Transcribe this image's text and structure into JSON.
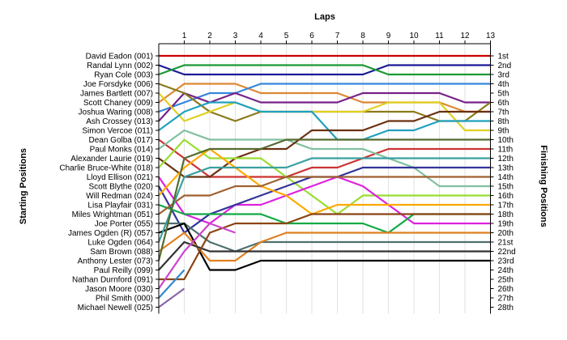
{
  "chart_data": {
    "type": "line",
    "title": "",
    "xlabel": "Laps",
    "ylabel_left": "Starting Positions",
    "ylabel_right": "Finishing Positions",
    "x_ticks": [
      "1",
      "2",
      "3",
      "4",
      "5",
      "6",
      "7",
      "8",
      "9",
      "10",
      "11",
      "12",
      "13"
    ],
    "xlim": [
      0,
      13
    ],
    "ylim": [
      1,
      28
    ],
    "grid": "vertical",
    "position_labels": [
      "1st",
      "2nd",
      "3rd",
      "4th",
      "5th",
      "6th",
      "7th",
      "8th",
      "9th",
      "10th",
      "11th",
      "12th",
      "13th",
      "14th",
      "15th",
      "16th",
      "17th",
      "18th",
      "19th",
      "20th",
      "21st",
      "22nd",
      "23rd",
      "24th",
      "25th",
      "26th",
      "27th",
      "28th"
    ],
    "series": [
      {
        "name": "David Eadon (001)",
        "color": "#cc0000",
        "values": [
          1,
          1,
          1,
          1,
          1,
          1,
          1,
          1,
          1,
          1,
          1,
          1,
          1,
          1
        ]
      },
      {
        "name": "Randal Lynn (002)",
        "color": "#1a1a99",
        "values": [
          2,
          3,
          3,
          3,
          3,
          3,
          3,
          3,
          3,
          2,
          2,
          2,
          2,
          2
        ]
      },
      {
        "name": "Ryan Cole (003)",
        "color": "#1a9933",
        "values": [
          3,
          2,
          2,
          2,
          2,
          2,
          2,
          2,
          2,
          3,
          3,
          3,
          3,
          3
        ]
      },
      {
        "name": "Joe Forsdyke (006)",
        "color": "#dd8833",
        "values": [
          6,
          4,
          4,
          4,
          5,
          5,
          5,
          5,
          6,
          6,
          6,
          6,
          7,
          7
        ]
      },
      {
        "name": "James Bartlett (007)",
        "color": "#3388dd",
        "values": [
          7,
          6,
          5,
          5,
          4,
          4,
          4,
          4,
          4,
          4,
          4,
          4,
          4,
          4
        ]
      },
      {
        "name": "Scott Chaney (009)",
        "color": "#772288",
        "values": [
          8,
          5,
          6,
          5,
          6,
          6,
          6,
          6,
          5,
          5,
          5,
          5,
          6,
          6
        ]
      },
      {
        "name": "Joshua Waring (008)",
        "color": "#8b7a1a",
        "values": [
          4,
          5,
          7,
          8,
          7,
          7,
          7,
          7,
          7,
          7,
          7,
          8,
          8,
          6
        ]
      },
      {
        "name": "Ash Crossey (013)",
        "color": "#e0d020",
        "values": [
          5,
          8,
          7,
          6,
          7,
          7,
          7,
          7,
          7,
          6,
          6,
          6,
          9,
          9
        ]
      },
      {
        "name": "Simon Vercoe (011)",
        "color": "#20a0c0",
        "values": [
          9,
          7,
          6,
          6,
          7,
          7,
          7,
          10,
          10,
          9,
          9,
          8,
          8,
          8
        ]
      },
      {
        "name": "Dean Golba (017)",
        "color": "#cc3333",
        "values": [
          10,
          12,
          14,
          14,
          14,
          14,
          13,
          13,
          12,
          11,
          11,
          11,
          11,
          11
        ]
      },
      {
        "name": "Paul Monks (014)",
        "color": "#80c0a0",
        "values": [
          11,
          9,
          10,
          10,
          10,
          10,
          11,
          11,
          11,
          12,
          13,
          15,
          15,
          15
        ]
      },
      {
        "name": "Alexander Laurie (019)",
        "color": "#6b3010",
        "values": [
          12,
          14,
          14,
          12,
          11,
          11,
          9,
          9,
          9,
          8,
          8,
          7,
          7,
          7
        ]
      },
      {
        "name": "Charlie Bruce-White (018)",
        "color": "#99dd33",
        "values": [
          13,
          10,
          12,
          12,
          12,
          14,
          16,
          18,
          16,
          16,
          16,
          16,
          16,
          16
        ]
      },
      {
        "name": "Lloyd Ellison (021)",
        "color": "#dd22dd",
        "values": [
          14,
          18,
          19,
          17,
          17,
          16,
          15,
          14,
          15,
          17,
          19,
          19,
          19,
          19
        ]
      },
      {
        "name": "Scott Blythe (020)",
        "color": "#333399",
        "values": [
          15,
          20,
          18,
          17,
          16,
          15,
          14,
          14,
          13,
          13,
          13,
          13,
          13,
          13
        ]
      },
      {
        "name": "Will Redman (024)",
        "color": "#ffaa00",
        "values": [
          16,
          13,
          11,
          13,
          15,
          16,
          18,
          17,
          17,
          17,
          17,
          17,
          17,
          17
        ]
      },
      {
        "name": "Lisa Playfair (031)",
        "color": "#11aa44",
        "values": [
          17,
          18,
          18,
          18,
          18,
          19,
          19,
          19,
          19,
          20,
          18,
          18,
          18,
          18
        ]
      },
      {
        "name": "Miles Wrightman (051)",
        "color": "#a06030",
        "values": [
          18,
          16,
          16,
          15,
          15,
          14,
          14,
          14,
          14,
          14,
          14,
          14,
          14,
          14
        ]
      },
      {
        "name": "Joe Porter (055)",
        "color": "#4f6f6f",
        "values": [
          19,
          19,
          21,
          22,
          21,
          21,
          21,
          21,
          21,
          21,
          21,
          21,
          21,
          21
        ]
      },
      {
        "name": "James Ogden (R) (057)",
        "color": "#000000",
        "values": [
          20,
          19,
          24,
          24,
          23,
          23,
          23,
          23,
          23,
          23,
          23,
          23,
          23,
          23
        ]
      },
      {
        "name": "Luke Ogden (064)",
        "color": "#3aa0a0",
        "values": [
          21,
          14,
          13,
          13,
          13,
          13,
          12,
          12,
          12,
          12,
          12,
          12,
          12,
          12
        ]
      },
      {
        "name": "Sam Brown (088)",
        "color": "#e08020",
        "values": [
          22,
          20,
          23,
          23,
          21,
          20,
          20,
          20,
          20,
          20,
          20,
          20,
          20,
          20
        ]
      },
      {
        "name": "Anthony Lester (073)",
        "color": "#556b2f",
        "values": [
          23,
          12,
          11,
          11,
          11,
          10,
          10,
          10,
          10,
          10,
          10,
          10,
          10,
          10
        ]
      },
      {
        "name": "Paul Reilly (099)",
        "color": "#333333",
        "values": [
          24,
          21,
          22,
          22,
          22,
          22,
          22,
          22,
          22,
          22,
          22,
          22,
          22,
          22
        ]
      },
      {
        "name": "Nathan Durnford (091)",
        "color": "#8b4513",
        "values": [
          25,
          25,
          20,
          19,
          19,
          19,
          18,
          18,
          18,
          18,
          18,
          18,
          18,
          18
        ]
      },
      {
        "name": "Jason Moore (030)",
        "color": "#cc44cc",
        "values": [
          26,
          22,
          19,
          20,
          null,
          null,
          null,
          null,
          null,
          null,
          null,
          null,
          null,
          null
        ]
      },
      {
        "name": "Phil Smith (000)",
        "color": "#3388cc",
        "values": [
          27,
          24,
          null,
          null,
          null,
          null,
          null,
          null,
          null,
          null,
          null,
          null,
          null,
          null
        ]
      },
      {
        "name": "Michael Newell (025)",
        "color": "#8866aa",
        "values": [
          28,
          26,
          null,
          null,
          null,
          null,
          null,
          null,
          null,
          null,
          null,
          null,
          null,
          null
        ]
      }
    ]
  }
}
